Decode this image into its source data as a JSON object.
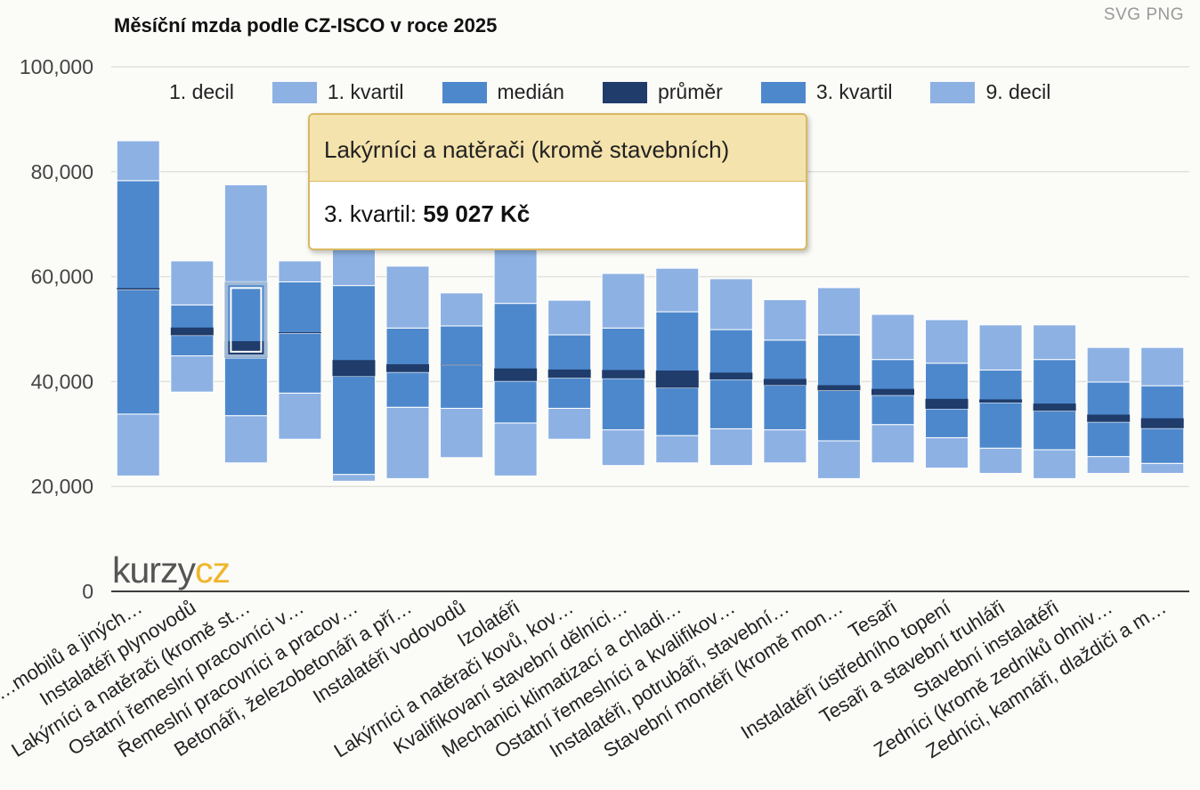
{
  "title": "Měsíční mzda podle CZ-ISCO v roce 2025",
  "export": {
    "svg": "SVG",
    "png": "PNG"
  },
  "logo": {
    "part1": "kurzy",
    "part2": "cz"
  },
  "tooltip": {
    "title": "Lakýrníci a natěrači (kromě stavebních)",
    "label": "3. kvartil:",
    "value": "59 027 Kč"
  },
  "legend": [
    {
      "name": "1. decil",
      "color": null
    },
    {
      "name": "1. kvartil",
      "color": "#8db1e3"
    },
    {
      "name": "medián",
      "color": "#4e88cc"
    },
    {
      "name": "průměr",
      "color": "#1f3c6b"
    },
    {
      "name": "3. kvartil",
      "color": "#4e88cc"
    },
    {
      "name": "9. decil",
      "color": "#8db1e3"
    }
  ],
  "colors": {
    "light": "#8db1e3",
    "mid": "#4e88cc",
    "dark": "#1f3c6b",
    "grid": "#e2e2dc",
    "axis": "#222"
  },
  "chart_data": {
    "type": "bar",
    "title": "Měsíční mzda podle CZ-ISCO v roce 2025",
    "ylim": [
      0,
      100000
    ],
    "yticks": [
      0,
      20000,
      40000,
      60000,
      80000,
      100000
    ],
    "ytick_labels": [
      "0",
      "20,000",
      "40,000",
      "60,000",
      "80,000",
      "100,000"
    ],
    "grid": true,
    "legend_position": "top",
    "categories": [
      "…mobilů a jiných…",
      "Instalatéři plynovodů",
      "Lakýrníci a natěrači (kromě st…",
      "Ostatní řemeslní pracovníci v…",
      "Řemeslní pracovníci a pracov…",
      "Betonáři, železobetonáři a pří…",
      "Instalatéři vodovodů",
      "Izolatéři",
      "Lakýrníci a natěrači kovů, kov…",
      "Kvalifikovaní stavební dělníci…",
      "Mechanici klimatizací a chladi…",
      "Ostatní řemeslníci a kvalifikov…",
      "Instalatéři, potrubáři, stavební…",
      "Stavební montéři (kromě mon…",
      "Tesaři",
      "Instalatéři ústředního topení",
      "Tesaři a stavební truhláři",
      "Stavební instalatéři",
      "Zedníci (kromě zedníků ohniv…",
      "Zedníci, kamnáři, dlaždiči a m…"
    ],
    "series": [
      {
        "name": "1. decil",
        "values": [
          22000,
          38000,
          24500,
          29000,
          21000,
          21500,
          25500,
          22000,
          29000,
          24000,
          24500,
          24000,
          24500,
          21500,
          24500,
          23500,
          22500,
          21500,
          22500,
          22500
        ]
      },
      {
        "name": "1. kvartil",
        "values": [
          33800,
          44900,
          33500,
          37800,
          22300,
          35100,
          34900,
          32100,
          34900,
          30800,
          29700,
          31000,
          30800,
          28700,
          31800,
          29300,
          27300,
          27000,
          25700,
          24400
        ]
      },
      {
        "name": "medián",
        "values": [
          57500,
          48800,
          44500,
          49200,
          41000,
          41800,
          43200,
          40100,
          40700,
          40600,
          38800,
          40400,
          39300,
          38300,
          37400,
          34800,
          36000,
          34400,
          32300,
          31100
        ]
      },
      {
        "name": "průměr",
        "values": [
          57800,
          50300,
          47700,
          49400,
          44100,
          43300,
          43300,
          42500,
          42300,
          42200,
          42100,
          41700,
          40500,
          39300,
          38600,
          36700,
          36600,
          35800,
          33700,
          33000
        ]
      },
      {
        "name": "3. kvartil",
        "values": [
          78300,
          54600,
          59027,
          59000,
          58300,
          50200,
          50600,
          54900,
          48900,
          50200,
          53300,
          49900,
          47900,
          48900,
          44200,
          43500,
          42200,
          44200,
          39900,
          39200
        ]
      },
      {
        "name": "9. decil",
        "values": [
          85900,
          63000,
          77500,
          63000,
          70000,
          62000,
          56900,
          70000,
          55500,
          60600,
          61600,
          59600,
          55600,
          57900,
          52800,
          51800,
          50800,
          50800,
          46500,
          46500
        ]
      }
    ]
  }
}
